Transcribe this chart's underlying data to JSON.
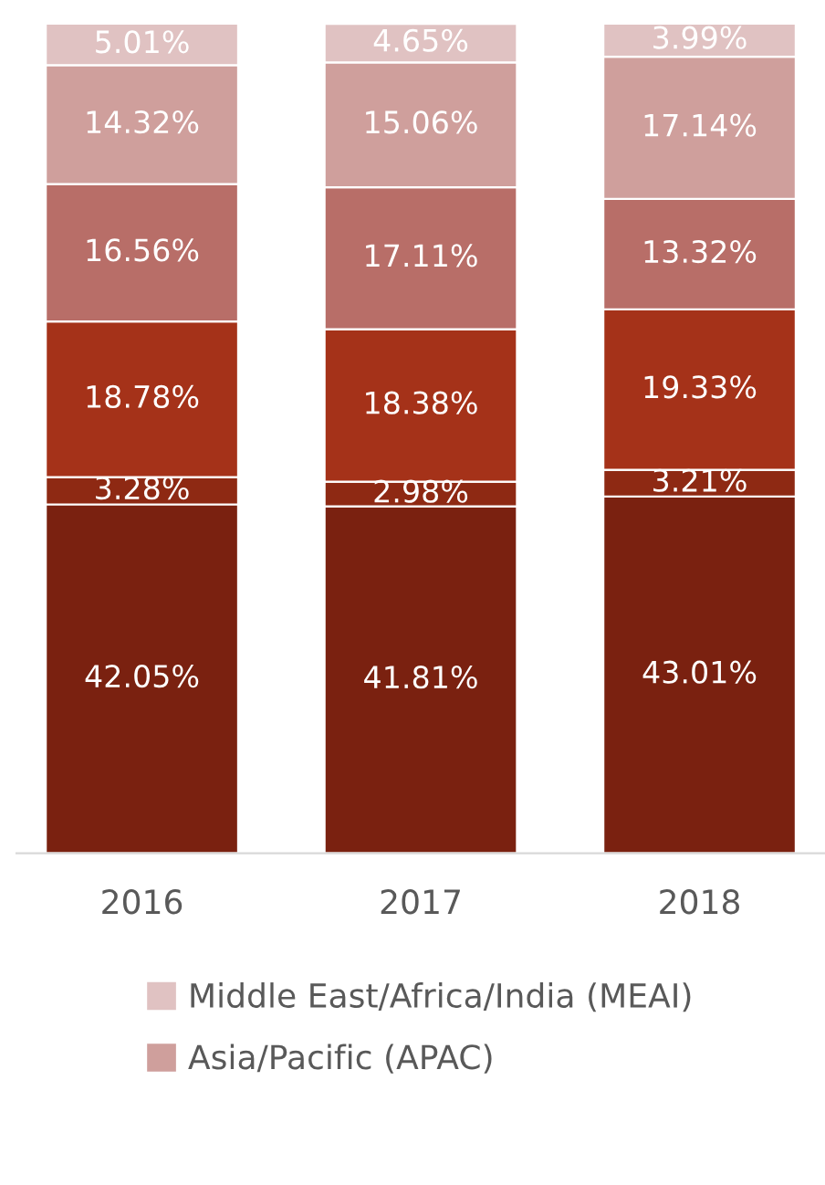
{
  "chart_data": {
    "type": "bar",
    "stacked": true,
    "categories": [
      "2016",
      "2017",
      "2018"
    ],
    "series": [
      {
        "color": "#7a2110",
        "values": [
          42.05,
          41.81,
          43.01
        ],
        "value_labels": [
          "42.05%",
          "41.81%",
          "43.01%"
        ]
      },
      {
        "color": "#8e2913",
        "values": [
          3.28,
          2.98,
          3.21
        ],
        "value_labels": [
          "3.28%",
          "2.98%",
          "3.21%"
        ]
      },
      {
        "color": "#a53219",
        "values": [
          18.78,
          18.38,
          19.33
        ],
        "value_labels": [
          "18.78%",
          "18.38%",
          "19.33%"
        ]
      },
      {
        "color": "#b86e68",
        "values": [
          16.56,
          17.11,
          13.32
        ],
        "value_labels": [
          "16.56%",
          "17.11%",
          "13.32%"
        ]
      },
      {
        "name": "Asia/Pacific (APAC)",
        "color": "#cf9f9c",
        "values": [
          14.32,
          15.06,
          17.14
        ],
        "value_labels": [
          "14.32%",
          "15.06%",
          "17.14%"
        ]
      },
      {
        "name": "Middle East/Africa/India (MEAI)",
        "color": "#e0c2c2",
        "values": [
          5.01,
          4.65,
          3.99
        ],
        "value_labels": [
          "5.01%",
          "4.65%",
          "3.99%"
        ]
      }
    ],
    "ylim": [
      0,
      100
    ],
    "tick_labels": "x",
    "legend": "bottom"
  }
}
